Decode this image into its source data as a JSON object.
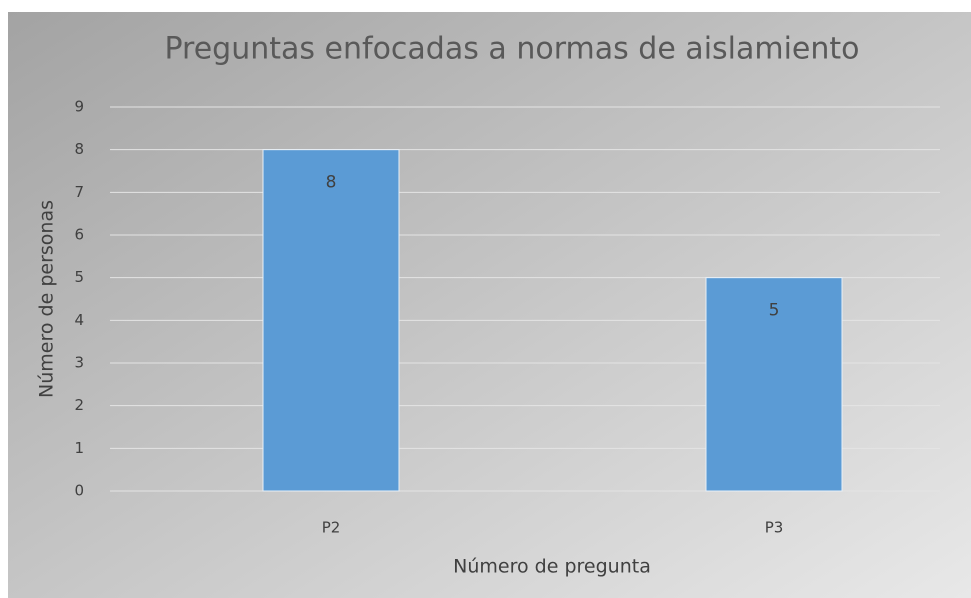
{
  "chart_data": {
    "type": "bar",
    "title": "Preguntas enfocadas a normas de aislamiento",
    "x_label": "Número de pregunta",
    "y_label": "Número de personas",
    "categories": [
      "P2",
      "P3"
    ],
    "values": [
      8,
      5
    ],
    "color": "#5b9bd5",
    "ylim": [
      0,
      9
    ],
    "yticks": [
      0,
      1,
      2,
      3,
      4,
      5,
      6,
      7,
      8,
      9
    ],
    "grid": true
  }
}
